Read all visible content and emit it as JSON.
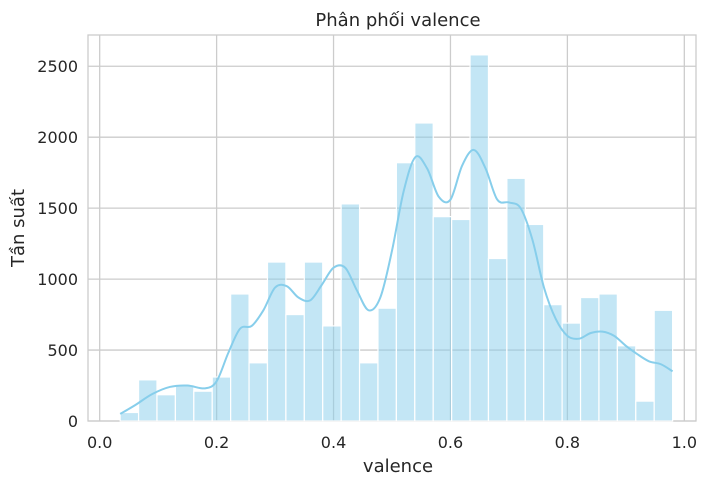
{
  "chart_data": {
    "type": "bar",
    "subtype": "histogram",
    "title": "Phân phối valence",
    "xlabel": "valence",
    "ylabel": "Tần suất",
    "xlim": [
      -0.02,
      1.02
    ],
    "ylim": [
      0,
      2720
    ],
    "xticks": [
      0.0,
      0.2,
      0.4,
      0.6,
      0.8,
      1.0
    ],
    "xtick_labels": [
      "0.0",
      "0.2",
      "0.4",
      "0.6",
      "0.8",
      "1.0"
    ],
    "yticks": [
      0,
      500,
      1000,
      1500,
      2000,
      2500
    ],
    "ytick_labels": [
      "0",
      "500",
      "1000",
      "1500",
      "2000",
      "2500"
    ],
    "grid": true,
    "bar_color": "#87ceeb",
    "bar_opacity": 0.5,
    "kde_color": "#87ceeb",
    "bins": {
      "start": 0.035,
      "width": 0.0315,
      "counts": [
        60,
        290,
        185,
        250,
        210,
        310,
        895,
        410,
        1120,
        750,
        1120,
        670,
        1530,
        410,
        795,
        1820,
        2100,
        1440,
        1420,
        2580,
        1145,
        1710,
        1385,
        820,
        690,
        870,
        895,
        530,
        140,
        780
      ]
    },
    "kde": {
      "x": [
        0.035,
        0.06,
        0.09,
        0.12,
        0.15,
        0.18,
        0.2,
        0.22,
        0.24,
        0.26,
        0.28,
        0.3,
        0.32,
        0.34,
        0.36,
        0.38,
        0.4,
        0.42,
        0.44,
        0.46,
        0.48,
        0.5,
        0.52,
        0.54,
        0.56,
        0.58,
        0.6,
        0.62,
        0.64,
        0.66,
        0.68,
        0.7,
        0.72,
        0.74,
        0.76,
        0.78,
        0.8,
        0.82,
        0.84,
        0.86,
        0.88,
        0.9,
        0.92,
        0.94,
        0.96,
        0.98
      ],
      "y": [
        50,
        110,
        190,
        240,
        250,
        230,
        280,
        480,
        650,
        670,
        780,
        940,
        950,
        870,
        850,
        960,
        1080,
        1080,
        920,
        780,
        870,
        1200,
        1620,
        1860,
        1780,
        1580,
        1560,
        1800,
        1910,
        1780,
        1560,
        1540,
        1500,
        1280,
        940,
        720,
        600,
        580,
        620,
        630,
        600,
        530,
        470,
        420,
        400,
        350
      ]
    }
  }
}
